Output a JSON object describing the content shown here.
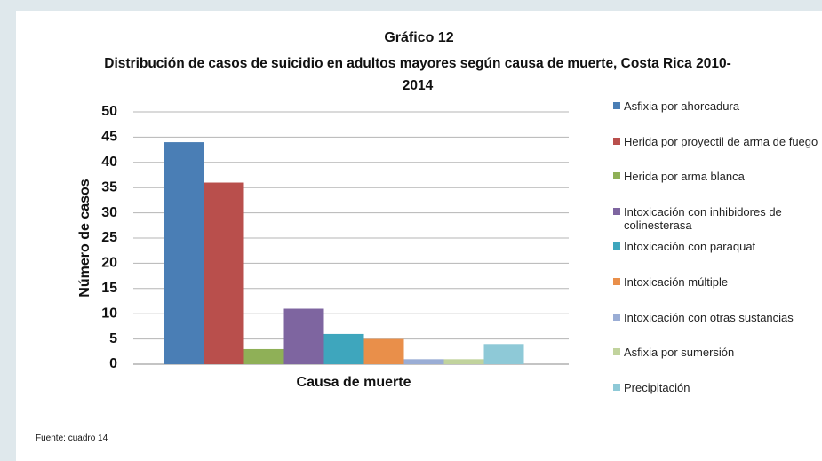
{
  "chart_data": {
    "type": "bar",
    "title": "Gráfico 12",
    "subtitle": "Distribución de casos de suicidio en adultos mayores según causa de muerte, Costa Rica 2010-2014",
    "x_label": "Causa de muerte",
    "y_label": "Número de casos",
    "categories": [
      null
    ],
    "series": [
      {
        "name": "Asfixia por ahorcadura",
        "color": "#4a7eb5",
        "values": [
          44
        ]
      },
      {
        "name": "Herida por proyectil de arma de fuego",
        "color": "#b94f4c",
        "values": [
          36
        ]
      },
      {
        "name": "Herida por arma blanca",
        "color": "#8fb057",
        "values": [
          3
        ]
      },
      {
        "name": "Intoxicación con inhibidores de colinesterasa",
        "color": "#7e65a0",
        "values": [
          11
        ]
      },
      {
        "name": "Intoxicación con paraquat",
        "color": "#3ea6bd",
        "values": [
          6
        ]
      },
      {
        "name": "Intoxicación múltiple",
        "color": "#e98f4a",
        "values": [
          5
        ]
      },
      {
        "name": "Intoxicación con otras sustancias",
        "color": "#9aadd5",
        "values": [
          1
        ]
      },
      {
        "name": "Asfixia por sumersión",
        "color": "#c1d39d",
        "values": [
          1
        ]
      },
      {
        "name": "Precipitación",
        "color": "#8ec9d7",
        "values": [
          4
        ]
      }
    ],
    "ylim": [
      0,
      50
    ],
    "yticks": [
      0,
      5,
      10,
      15,
      20,
      25,
      30,
      35,
      40,
      45,
      50
    ],
    "grid": true,
    "legend": "right",
    "source": "Fuente: cuadro 14"
  }
}
